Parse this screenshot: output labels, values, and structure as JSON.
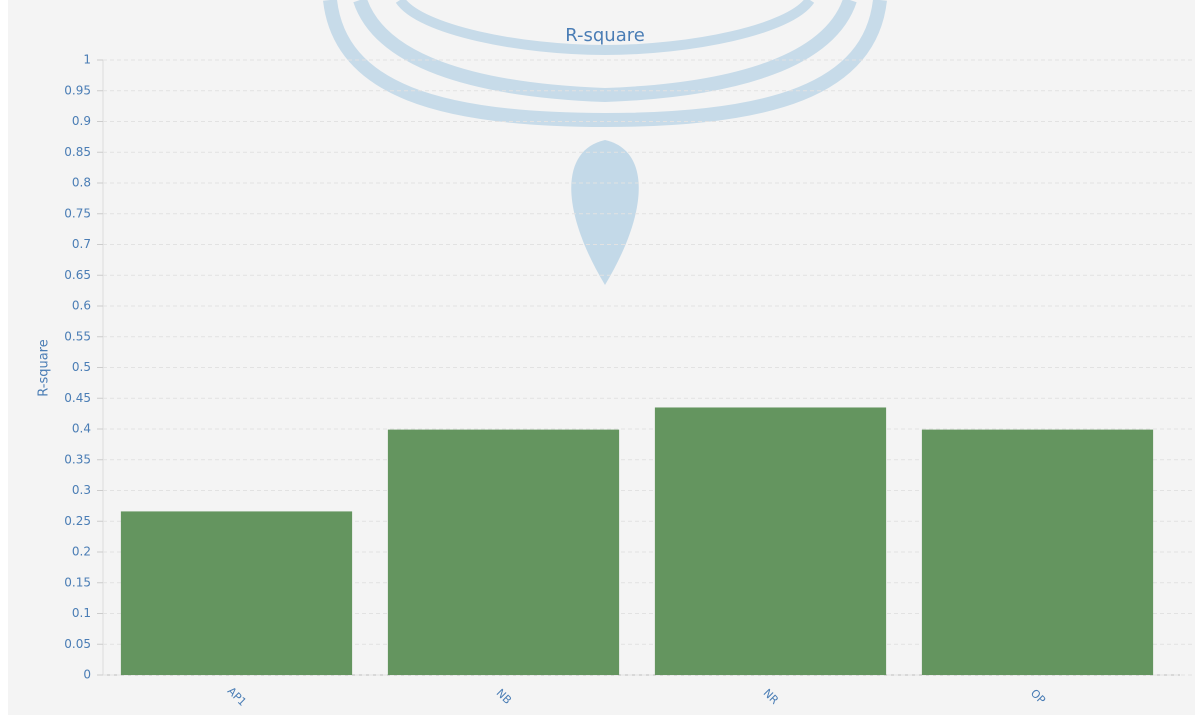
{
  "chart_data": {
    "type": "bar",
    "title": "R-square",
    "y_label": "R-square",
    "categories": [
      "AP1",
      "NB",
      "NR",
      "OP"
    ],
    "values": [
      0.266,
      0.399,
      0.435,
      0.399
    ],
    "color": "#64955f",
    "ylim": [
      0,
      1
    ],
    "yticks": [
      0,
      0.05,
      0.1,
      0.15,
      0.2,
      0.25,
      0.3,
      0.35,
      0.4,
      0.45,
      0.5,
      0.55,
      0.6,
      0.65,
      0.7,
      0.75,
      0.8,
      0.85,
      0.9,
      0.95,
      1
    ],
    "grid": true
  }
}
